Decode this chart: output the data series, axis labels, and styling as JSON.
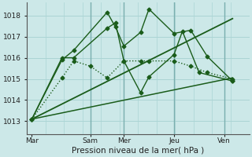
{
  "bg_color": "#cce8e8",
  "grid_color": "#aad4d4",
  "line_color": "#1a5c1a",
  "xlabel": "Pression niveau de la mer( hPa )",
  "ylim": [
    1012.4,
    1018.6
  ],
  "yticks": [
    1013,
    1014,
    1015,
    1016,
    1017,
    1018
  ],
  "xtick_labels": [
    "Mar",
    "Sam",
    "Mer",
    "Jeu",
    "Ven"
  ],
  "xtick_pos": [
    0,
    3.5,
    5.5,
    8.5,
    11.5
  ],
  "xlim": [
    -0.3,
    13.0
  ],
  "lines": [
    {
      "x": [
        0,
        1.8,
        2.5,
        4.5,
        5.0,
        5.5,
        6.5,
        7.0,
        8.5,
        9.5,
        10.5,
        12.0
      ],
      "y": [
        1013.1,
        1015.9,
        1016.35,
        1018.15,
        1017.45,
        1016.55,
        1017.2,
        1018.3,
        1017.15,
        1017.3,
        1016.05,
        1014.9
      ],
      "style": "-",
      "marker": "D",
      "markersize": 2.5,
      "linewidth": 1.0
    },
    {
      "x": [
        0,
        1.8,
        2.5,
        4.5,
        5.0,
        5.5,
        6.5,
        7.0,
        8.5,
        9.0,
        10.0,
        12.0
      ],
      "y": [
        1013.1,
        1016.0,
        1016.0,
        1017.4,
        1017.65,
        1015.85,
        1014.35,
        1015.1,
        1016.15,
        1017.25,
        1015.3,
        1014.9
      ],
      "style": "-",
      "marker": "D",
      "markersize": 2.5,
      "linewidth": 1.0
    },
    {
      "x": [
        0,
        1.8,
        2.5,
        3.5,
        4.5,
        5.5,
        6.5,
        7.0,
        8.5,
        9.5,
        10.5,
        12.0
      ],
      "y": [
        1013.1,
        1015.05,
        1015.85,
        1015.6,
        1015.05,
        1015.85,
        1015.85,
        1015.85,
        1015.85,
        1015.6,
        1015.3,
        1015.0
      ],
      "style": ":",
      "marker": "D",
      "markersize": 2.5,
      "linewidth": 1.0
    },
    {
      "x": [
        0,
        12.0
      ],
      "y": [
        1013.1,
        1017.85
      ],
      "style": "-",
      "marker": "None",
      "markersize": 0,
      "linewidth": 1.3
    },
    {
      "x": [
        0,
        12.0
      ],
      "y": [
        1013.1,
        1015.05
      ],
      "style": "-",
      "marker": "None",
      "markersize": 0,
      "linewidth": 1.1
    }
  ],
  "vline_positions": [
    3.5,
    5.5,
    8.5,
    11.5
  ],
  "tick_fontsize": 6.5,
  "xlabel_fontsize": 7.5
}
